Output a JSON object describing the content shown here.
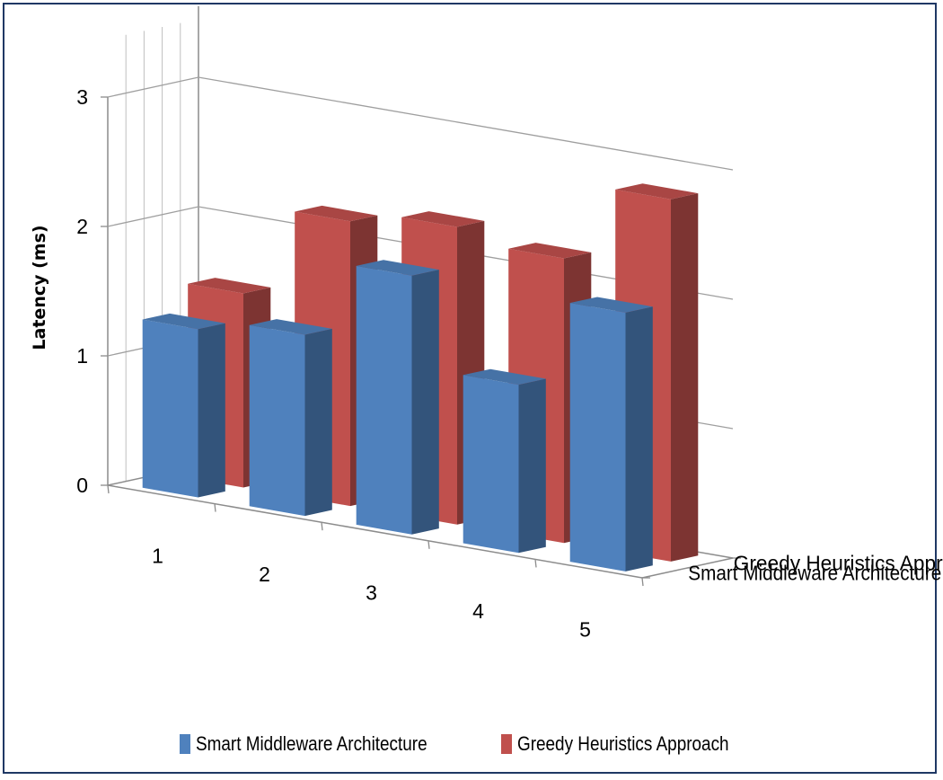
{
  "chart_data": {
    "type": "bar",
    "subtype": "3d-clustered-depth",
    "categories": [
      "1",
      "2",
      "3",
      "4",
      "5"
    ],
    "series": [
      {
        "name": "Smart Middleware Architecture",
        "values": [
          1.3,
          1.4,
          2.0,
          1.3,
          2.0
        ],
        "color": "#4f81bd"
      },
      {
        "name": "Greedy Heuristics Approach",
        "values": [
          1.5,
          2.2,
          2.3,
          2.2,
          2.8
        ],
        "color": "#c0504d"
      }
    ],
    "ylabel": "Latency (ms)",
    "xlabel": "",
    "yticks": [
      "0",
      "1",
      "2",
      "3"
    ],
    "ylim": [
      0,
      3
    ],
    "grid": true,
    "legend": "bottom"
  }
}
